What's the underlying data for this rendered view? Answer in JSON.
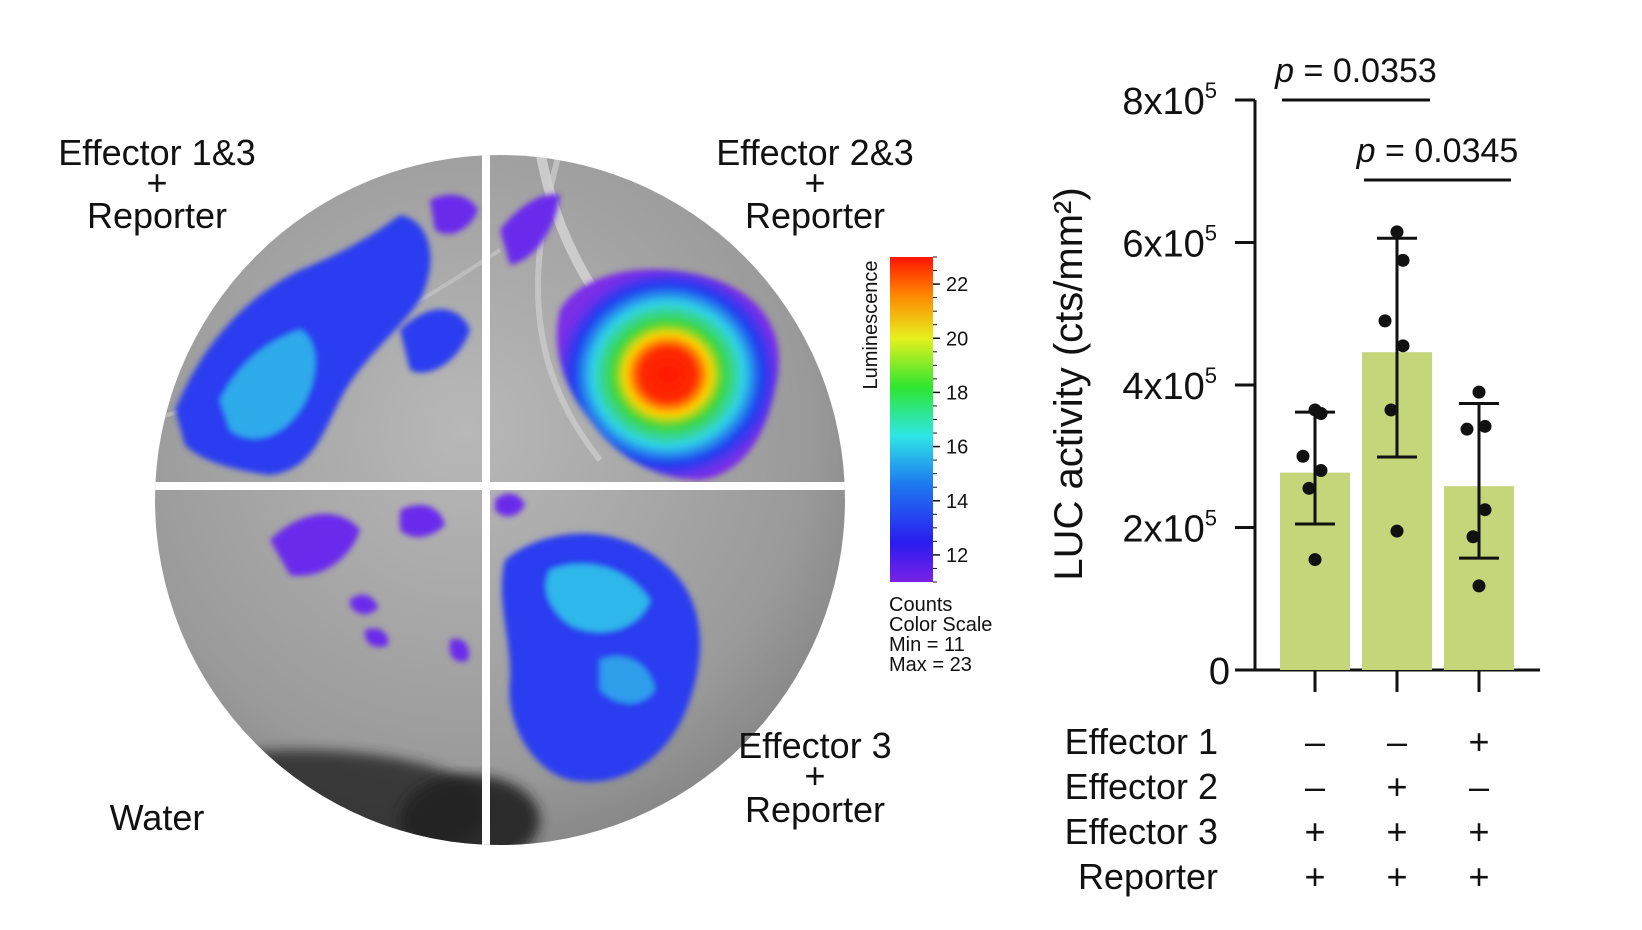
{
  "image_panel": {
    "quadrant_labels": [
      {
        "id": "q1",
        "lines": [
          "Effector 1&3",
          "+",
          "Reporter"
        ]
      },
      {
        "id": "q2",
        "lines": [
          "Effector 2&3",
          "+",
          "Reporter"
        ]
      },
      {
        "id": "q3",
        "lines": [
          "Water"
        ]
      },
      {
        "id": "q4",
        "lines": [
          "Effector 3",
          "+",
          "Reporter"
        ]
      }
    ],
    "colorbar": {
      "title": "Luminescence",
      "ticks": [
        "12",
        "14",
        "16",
        "18",
        "20",
        "22"
      ],
      "tick_values": [
        12,
        14,
        16,
        18,
        20,
        22
      ],
      "min_value": 11,
      "max_value": 23,
      "caption_lines": [
        "Counts",
        "Color Scale",
        "Min = 11",
        "Max = 23"
      ]
    }
  },
  "chart_data": {
    "type": "bar",
    "ylabel": "LUC activity (cts/mm²)",
    "ylim": [
      0,
      800000
    ],
    "yticks": [
      {
        "value": 0,
        "label": "0"
      },
      {
        "value": 200000,
        "base": "2x10",
        "exp": "5"
      },
      {
        "value": 400000,
        "base": "4x10",
        "exp": "5"
      },
      {
        "value": 600000,
        "base": "6x10",
        "exp": "5"
      },
      {
        "value": 800000,
        "base": "8x10",
        "exp": "5"
      }
    ],
    "bar_color": "#c5d57a",
    "bars": [
      {
        "value": 277000,
        "err_low": 205000,
        "err_high": 362000,
        "points": [
          365000,
          360000,
          300000,
          280000,
          255000,
          155000
        ]
      },
      {
        "value": 446000,
        "err_low": 299000,
        "err_high": 606000,
        "points": [
          615000,
          575000,
          490000,
          455000,
          365000,
          195000
        ]
      },
      {
        "value": 258000,
        "err_low": 157000,
        "err_high": 374000,
        "points": [
          390000,
          342000,
          338000,
          225000,
          187000,
          118000
        ]
      }
    ],
    "significance": [
      {
        "from": 0,
        "to": 1,
        "label_italic": "p",
        "label_rest": " = 0.0353",
        "value": 0.0353
      },
      {
        "from": 1,
        "to": 2,
        "label_italic": "p",
        "label_rest": " = 0.0345",
        "value": 0.0345
      }
    ],
    "condition_table": {
      "row_labels": [
        "Effector 1",
        "Effector 2",
        "Effector 3",
        "Reporter"
      ],
      "cells": [
        [
          "–",
          "–",
          "+"
        ],
        [
          "–",
          "+",
          "–"
        ],
        [
          "+",
          "+",
          "+"
        ],
        [
          "+",
          "+",
          "+"
        ]
      ]
    }
  }
}
